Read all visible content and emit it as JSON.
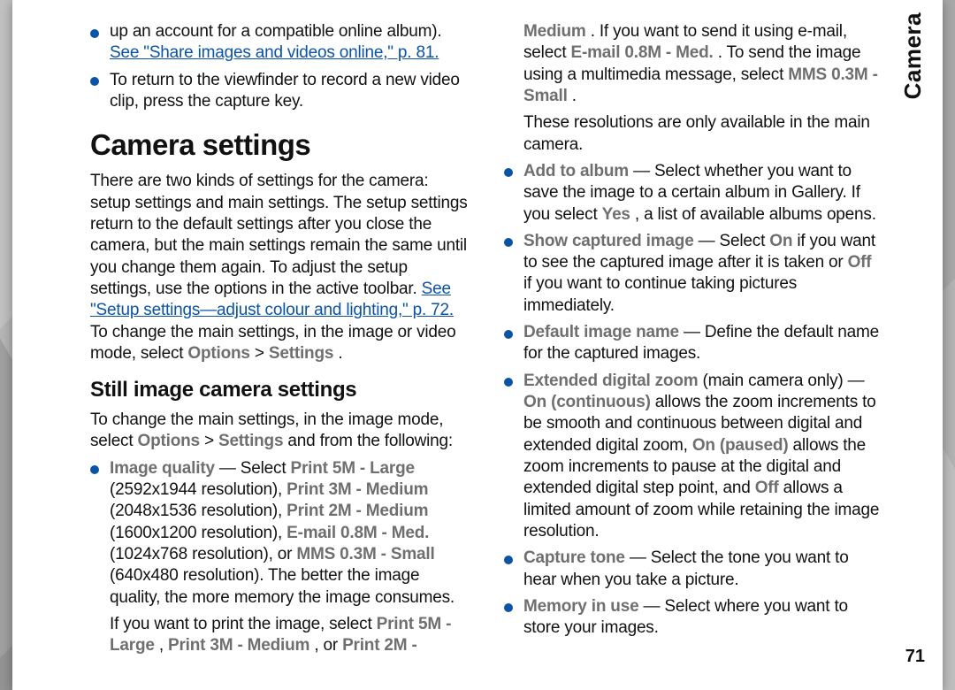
{
  "meta": {
    "side_tab": "Camera",
    "page_number": "71"
  },
  "colors": {
    "bullet": "#0a53a5",
    "link": "#0a53a5",
    "ui_gray": "#6f6f6f",
    "text": "#111111",
    "page_bg": "#ffffff"
  },
  "left": {
    "intro_bullets": [
      {
        "pre": "up an account for a compatible online album). ",
        "link": "See \"Share images and videos online,\" p. 81."
      },
      {
        "text": "To return to the viewfinder to record a new video clip, press the capture key."
      }
    ],
    "h1": "Camera settings",
    "para1_a": "There are two kinds of settings for the camera: setup settings and main settings. The setup settings return to the default settings after you close the camera, but the main settings remain the same until you change them again. To adjust the setup settings, use the options in the active toolbar. ",
    "para1_link": "See \"Setup settings—adjust colour and lighting,\" p. 72.",
    "para1_b": " To change the main settings, in the image or video mode, select ",
    "para1_ui1": "Options",
    "para1_gt": " > ",
    "para1_ui2": "Settings",
    "para1_end": ".",
    "h2": "Still image camera settings",
    "para2_a": "To change the main settings, in the image mode, select ",
    "para2_ui1": "Options",
    "para2_gt": " > ",
    "para2_ui2": "Settings",
    "para2_b": " and from the following:",
    "iq": {
      "label": "Image quality",
      "dash": " — Select ",
      "o1": "Print 5M - Large",
      "r1": " (2592x1944 resolution), ",
      "o2": "Print 3M - Medium",
      "r2": " (2048x1536 resolution), ",
      "o3": "Print 2M - Medium",
      "r3": " (1600x1200 resolution), ",
      "o4": "E-mail 0.8M - Med.",
      "r4": " (1024x768 resolution), or ",
      "o5": "MMS 0.3M - Small",
      "r5": " (640x480 resolution). The better the image quality, the more memory the image consumes."
    }
  },
  "right": {
    "iq_cont": {
      "a": "If you want to print the image, select ",
      "o1": "Print 5M - Large",
      "c1": ", ",
      "o2": "Print 3M - Medium",
      "c2": ", or ",
      "o3": "Print 2M - Medium",
      "c3": ". If you want to send it using e-mail, select ",
      "o4": "E-mail 0.8M - Med.",
      "c4": ". To send the image using a multimedia message, select ",
      "o5": "MMS 0.3M - Small",
      "c5": "."
    },
    "iq_note": "These resolutions are only available in the main camera.",
    "bullets": {
      "add_album": {
        "label": "Add to album",
        "a": " — Select whether you want to save the image to a certain album in Gallery. If you select ",
        "yes": "Yes",
        "b": ", a list of available albums opens."
      },
      "show_captured": {
        "label": "Show captured image",
        "a": " — Select ",
        "on": "On",
        "b": " if you want to see the captured image after it is taken or ",
        "off": "Off",
        "c": " if you want to continue taking pictures immediately."
      },
      "default_name": {
        "label": "Default image name",
        "a": " — Define the default name for the captured images."
      },
      "ext_zoom": {
        "label": "Extended digital zoom",
        "note": " (main camera only) — ",
        "on_cont": "On (continuous)",
        "a": " allows the zoom increments to be smooth and continuous between digital and extended digital zoom, ",
        "on_paused": "On (paused)",
        "b": " allows the zoom increments to pause at the digital and extended digital step point, and ",
        "off": "Off",
        "c": " allows a limited amount of zoom while retaining the image resolution."
      },
      "capture_tone": {
        "label": "Capture tone",
        "a": " — Select the tone you want to hear when you take a picture."
      },
      "memory": {
        "label": "Memory in use",
        "a": " — Select where you want to store your images."
      }
    }
  }
}
